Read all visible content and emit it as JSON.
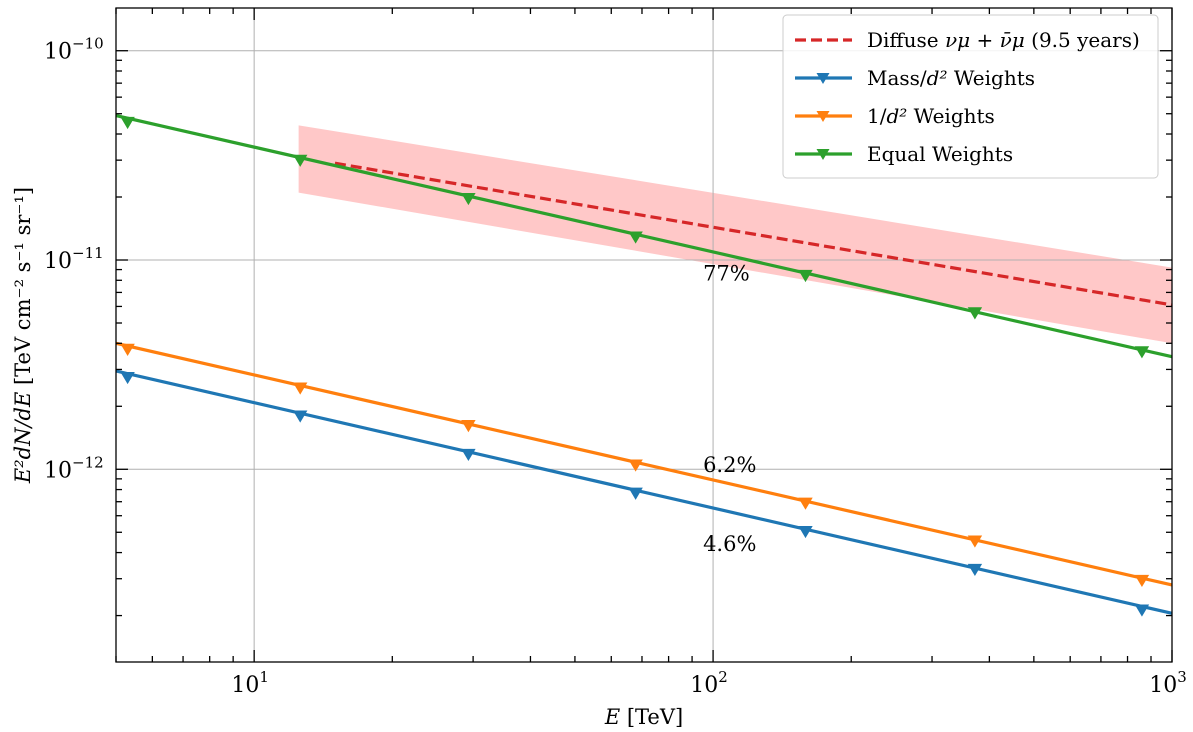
{
  "chart_data": {
    "type": "line",
    "xscale": "log",
    "yscale": "log",
    "xlim": [
      5,
      1000
    ],
    "ylim": [
      1.2e-13,
      1.6e-10
    ],
    "grid": true,
    "legend_position": "top-right",
    "xlabel": "E [TeV]",
    "ylabel": "E²dN/dE [TeV cm⁻² s⁻¹ sr⁻¹]",
    "x_ticks": [
      {
        "value": 10,
        "label": "10",
        "exp": "1"
      },
      {
        "value": 100,
        "label": "10",
        "exp": "2"
      },
      {
        "value": 1000,
        "label": "10",
        "exp": "3"
      }
    ],
    "y_ticks": [
      {
        "value": 1e-12,
        "label": "10",
        "exp": "−12"
      },
      {
        "value": 1e-11,
        "label": "10",
        "exp": "−11"
      },
      {
        "value": 1e-10,
        "label": "10",
        "exp": "−10"
      }
    ],
    "series": [
      {
        "name": "Diffuse νμ + ν̄μ (9.5 years)",
        "style": "dashed",
        "color": "#d62728",
        "x": [
          15,
          1000
        ],
        "y": [
          2.9e-11,
          6.1e-12
        ],
        "band": {
          "color": "#ffc8c8",
          "x": [
            12.5,
            1000
          ],
          "upper": [
            4.4e-11,
            9.2e-12
          ],
          "lower": [
            2.1e-11,
            4e-12
          ]
        }
      },
      {
        "name": "Mass/d² Weights",
        "style": "solid",
        "color": "#1f77b4",
        "x": [
          5,
          1000
        ],
        "y": [
          2.95e-12,
          2.05e-13
        ],
        "markers": {
          "symbol": "triangle-down",
          "x": [
            5.3,
            12.6,
            29.3,
            67.8,
            159,
            372,
            860
          ],
          "y": [
            2.75e-12,
            1.8e-12,
            1.18e-12,
            7.7e-13,
            5.05e-13,
            3.33e-13,
            2.13e-13
          ]
        }
      },
      {
        "name": "1/d² Weights",
        "style": "solid",
        "color": "#ff7f0e",
        "x": [
          5,
          1000
        ],
        "y": [
          4e-12,
          2.8e-13
        ],
        "markers": {
          "symbol": "triangle-down",
          "x": [
            5.3,
            12.6,
            29.3,
            67.8,
            159,
            372,
            860
          ],
          "y": [
            3.75e-12,
            2.45e-12,
            1.62e-12,
            1.05e-12,
            6.9e-13,
            4.55e-13,
            2.95e-13
          ]
        }
      },
      {
        "name": "Equal Weights",
        "style": "solid",
        "color": "#2ca02c",
        "x": [
          5,
          1000
        ],
        "y": [
          4.9e-11,
          3.45e-12
        ],
        "markers": {
          "symbol": "triangle-down",
          "x": [
            5.3,
            12.6,
            29.3,
            67.8,
            159,
            372,
            860
          ],
          "y": [
            4.55e-11,
            3e-11,
            1.97e-11,
            1.29e-11,
            8.45e-12,
            5.6e-12,
            3.65e-12
          ]
        }
      }
    ],
    "legend": [
      {
        "name_pre": "Diffuse ",
        "name_math": "νμ + ν̄μ",
        "name_post": " (9.5 years)"
      },
      {
        "name_pre": "Mass/",
        "name_math": "d²",
        "name_post": " Weights"
      },
      {
        "name_pre": "1/",
        "name_math": "d²",
        "name_post": " Weights"
      },
      {
        "name_pre": "Equal Weights",
        "name_math": "",
        "name_post": ""
      }
    ],
    "annotations": [
      {
        "text": "77%",
        "x": 100,
        "y": 8.6e-12
      },
      {
        "text": "6.2%",
        "x": 100,
        "y": 1.05e-12
      },
      {
        "text": "4.6%",
        "x": 100,
        "y": 4.4e-13
      }
    ]
  }
}
